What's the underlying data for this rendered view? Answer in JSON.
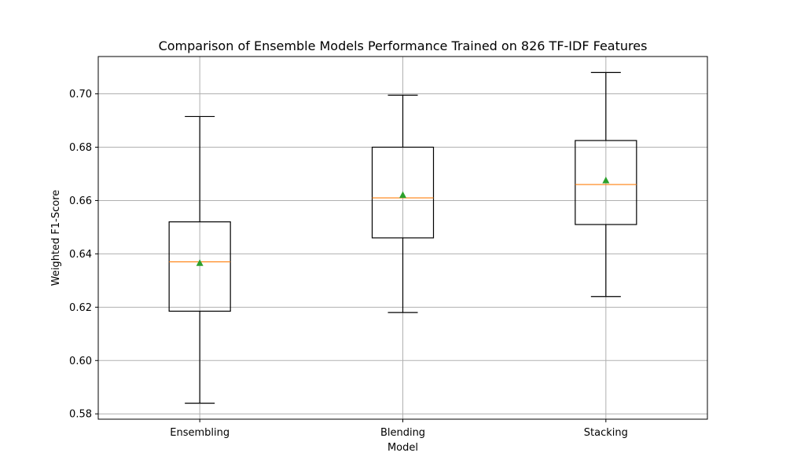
{
  "chart_data": {
    "type": "box",
    "title": "Comparison of Ensemble Models Performance Trained on 826 TF-IDF Features",
    "xlabel": "Model",
    "ylabel": "Weighted F1-Score",
    "ylim": [
      0.578,
      0.714
    ],
    "yticks": [
      "0.58",
      "0.60",
      "0.62",
      "0.64",
      "0.66",
      "0.68",
      "0.70"
    ],
    "grid": true,
    "categories": [
      "Ensembling",
      "Blending",
      "Stacking"
    ],
    "series": [
      {
        "whisker_low": 0.584,
        "q1": 0.6185,
        "median": 0.637,
        "mean": 0.6365,
        "q3": 0.652,
        "whisker_high": 0.6915
      },
      {
        "whisker_low": 0.618,
        "q1": 0.646,
        "median": 0.661,
        "mean": 0.662,
        "q3": 0.68,
        "whisker_high": 0.6995
      },
      {
        "whisker_low": 0.624,
        "q1": 0.651,
        "median": 0.666,
        "mean": 0.6675,
        "q3": 0.6825,
        "whisker_high": 0.708
      }
    ],
    "colors": {
      "box": "#000000",
      "median": "#ff7f0e",
      "mean": "#2ca02c",
      "grid": "#b0b0b0"
    }
  }
}
